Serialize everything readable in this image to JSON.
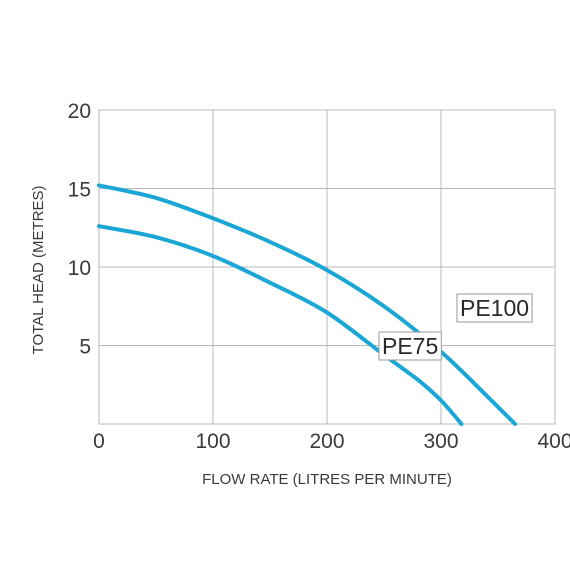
{
  "chart_data": {
    "type": "line",
    "xlabel": "FLOW RATE (LITRES PER MINUTE)",
    "ylabel": "TOTAL HEAD (METRES)",
    "xlim": [
      0,
      400
    ],
    "ylim": [
      0,
      20
    ],
    "xticks": [
      0,
      100,
      200,
      300,
      400
    ],
    "yticks": [
      5,
      10,
      15,
      20
    ],
    "grid": true,
    "line_color": "#1aa7d6",
    "series": [
      {
        "name": "PE100",
        "x": [
          0,
          50,
          100,
          150,
          200,
          250,
          300,
          340,
          365
        ],
        "y": [
          15.2,
          14.4,
          13.1,
          11.6,
          9.8,
          7.5,
          4.6,
          1.8,
          0
        ]
      },
      {
        "name": "PE75",
        "x": [
          0,
          50,
          100,
          150,
          200,
          250,
          280,
          300,
          318
        ],
        "y": [
          12.6,
          11.9,
          10.7,
          9.0,
          7.1,
          4.4,
          2.8,
          1.5,
          0
        ]
      }
    ]
  }
}
